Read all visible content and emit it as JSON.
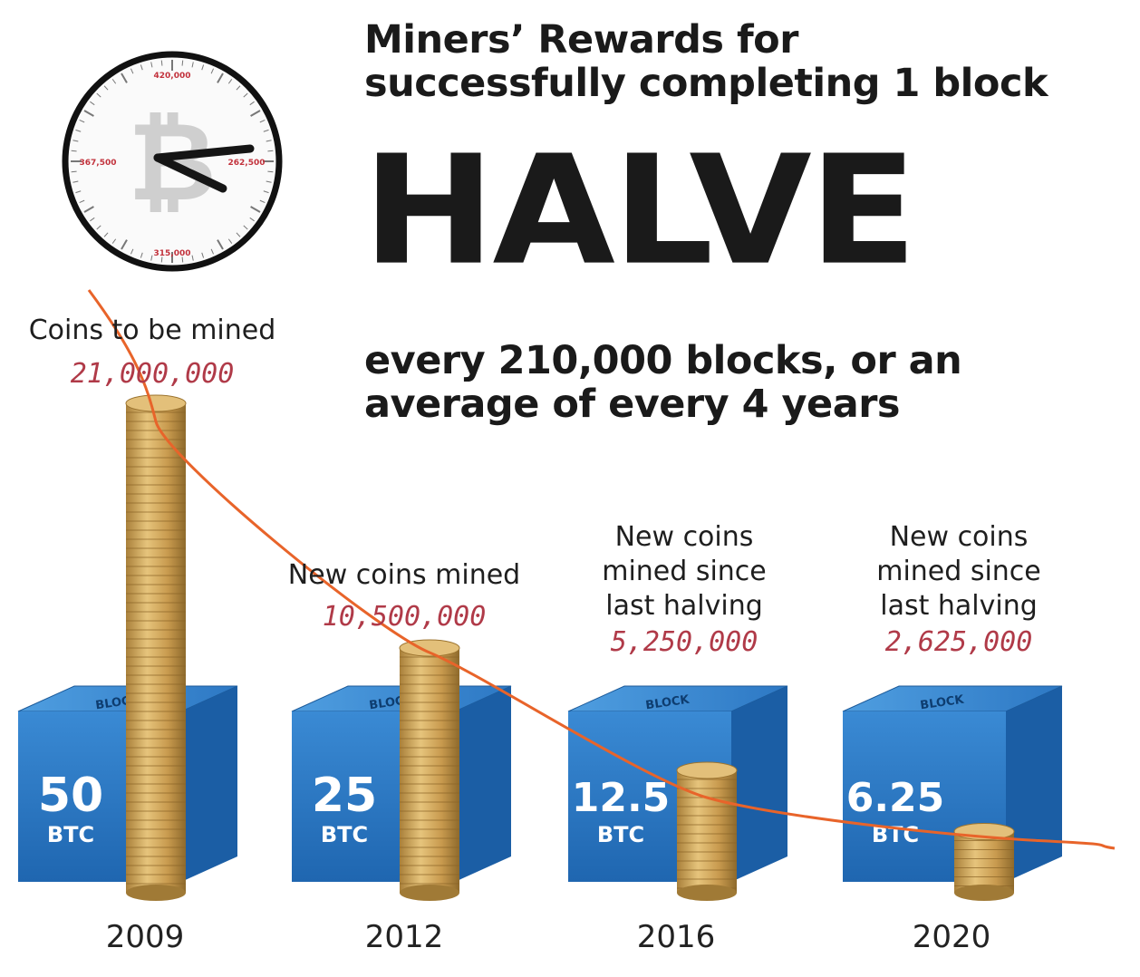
{
  "header": {
    "headline_line1": "Miners’ Rewards for",
    "headline_line2": "successfully completing 1 block",
    "big_word": "HALVE",
    "sub_line1": "every 210,000 blocks, or an",
    "sub_line2": "average of every 4 years"
  },
  "clock": {
    "labels": [
      "420,000",
      "262,500",
      "315,000",
      "367,500"
    ],
    "icon": "bitcoin-clock-icon"
  },
  "annotations": [
    {
      "lines": [
        "Coins to be mined"
      ],
      "value": "21,000,000"
    },
    {
      "lines": [
        "New coins mined"
      ],
      "value": "10,500,000"
    },
    {
      "lines": [
        "New coins",
        "mined since",
        "last halving"
      ],
      "value": "5,250,000"
    },
    {
      "lines": [
        "New coins",
        "mined since",
        "last halving"
      ],
      "value": "2,625,000"
    }
  ],
  "blocks": [
    {
      "amount": "50",
      "unit": "BTC",
      "tag": "BLOCK"
    },
    {
      "amount": "25",
      "unit": "BTC",
      "tag": "BLOCK"
    },
    {
      "amount": "12.5",
      "unit": "BTC",
      "tag": "BLOCK"
    },
    {
      "amount": "6.25",
      "unit": "BTC",
      "tag": "BLOCK"
    }
  ],
  "colors": {
    "block_blue": "#2f7fc8",
    "coin_gold": "#d2aa5c",
    "curve": "#e8642a",
    "value_red": "#b03a48"
  },
  "chart_data": {
    "type": "bar",
    "categories": [
      "2009",
      "2012",
      "2016",
      "2020"
    ],
    "series": [
      {
        "values": [
          21000000,
          10500000,
          5250000,
          2625000
        ]
      },
      {
        "values": [
          50,
          25,
          12.5,
          6.25
        ]
      }
    ],
    "title": "",
    "xlabel": "",
    "ylabel": "",
    "grid": false,
    "legend": "none"
  }
}
